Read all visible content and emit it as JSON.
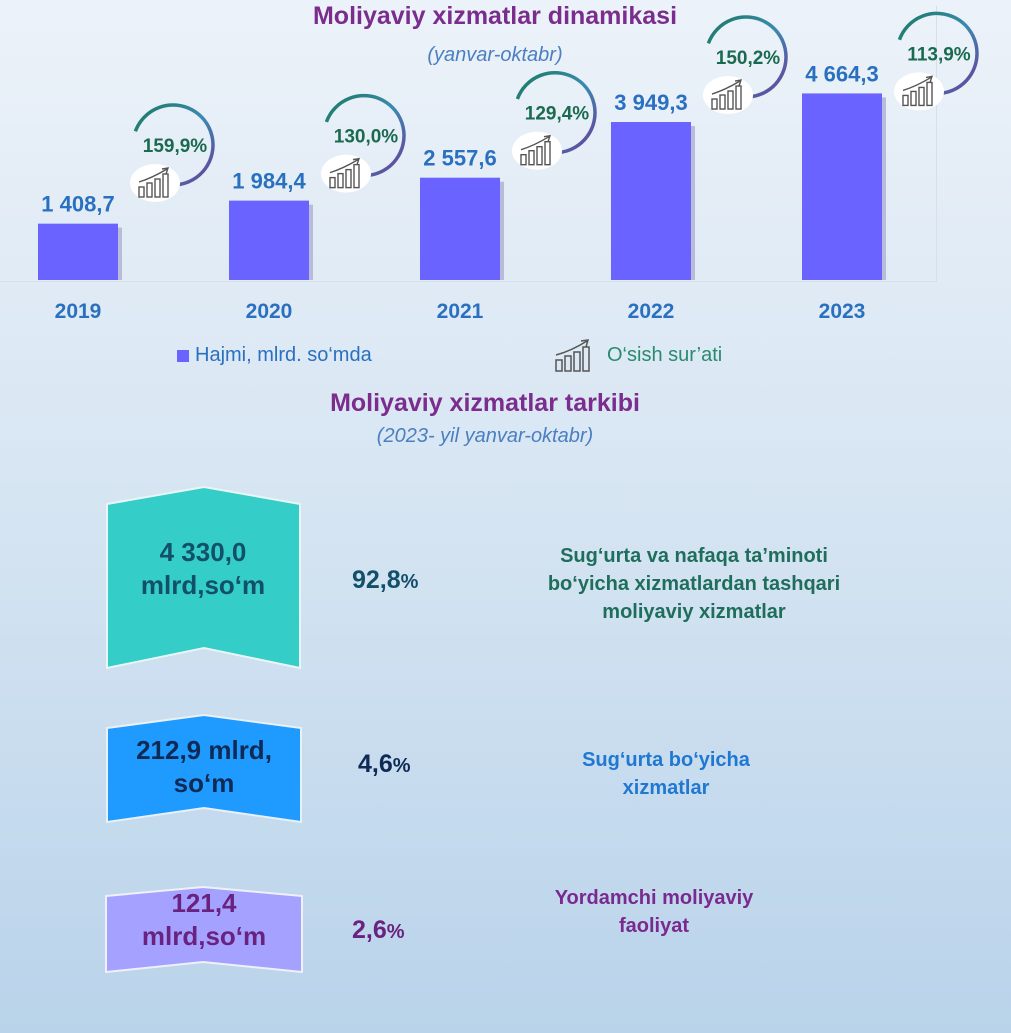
{
  "chart_data": {
    "type": "bar",
    "title": "Moliyaviy xizmatlar dinamikasi",
    "subtitle": "(yanvar-oktabr)",
    "categories": [
      "2019",
      "2020",
      "2021",
      "2022",
      "2023"
    ],
    "series": [
      {
        "name": "Hajmi, mlrd. so‘mda",
        "values": [
          1408.7,
          1984.4,
          2557.6,
          3949.3,
          4664.3
        ],
        "labels": [
          "1 408,7",
          "1 984,4",
          "2 557,6",
          "3 949,3",
          "4 664,3"
        ],
        "color": "#6a63ff"
      },
      {
        "name": "O‘sish sur’ati",
        "values": [
          159.9,
          130.0,
          129.4,
          150.2,
          113.9
        ],
        "labels": [
          "159,9%",
          "130,0%",
          "129,4%",
          "150,2%",
          "113,9%"
        ],
        "icon": "growth-chart-icon",
        "colors": [
          "#1a7a60",
          "#3a8ab0",
          "#6a3d9a"
        ]
      }
    ],
    "ylim": [
      0,
      5000
    ]
  },
  "legend": {
    "volume_label": "Hajmi, mlrd. so‘mda",
    "growth_label": "O‘sish sur’ati"
  },
  "composition": {
    "title": "Moliyaviy xizmatlar tarkibi",
    "subtitle": "(2023- yil yanvar-oktabr)",
    "items": [
      {
        "amount_line1": "4 330,0",
        "amount_line2": "mlrd,so‘m",
        "percent_num": "92,8",
        "percent_sign": "%",
        "desc_line1": "Sug‘urta va nafaqa ta’minoti",
        "desc_line2": "bo‘yicha xizmatlardan tashqari",
        "desc_line3": "moliyaviy xizmatlar",
        "share": 0.928,
        "color": "#34cdc8"
      },
      {
        "amount_line1": "212,9 mlrd,",
        "amount_line2": "so‘m",
        "percent_num": "4,6",
        "percent_sign": "%",
        "desc_line1": "Sug‘urta bo‘yicha",
        "desc_line2": "xizmatlar",
        "share": 0.046,
        "color": "#1f9bff"
      },
      {
        "amount_line1": "121,4",
        "amount_line2": "mlrd,so‘m",
        "percent_num": "2,6",
        "percent_sign": "%",
        "desc_line1": "Yordamchi moliyaviy",
        "desc_line2": "faoliyat",
        "share": 0.026,
        "color": "#a5a2ff"
      }
    ]
  }
}
